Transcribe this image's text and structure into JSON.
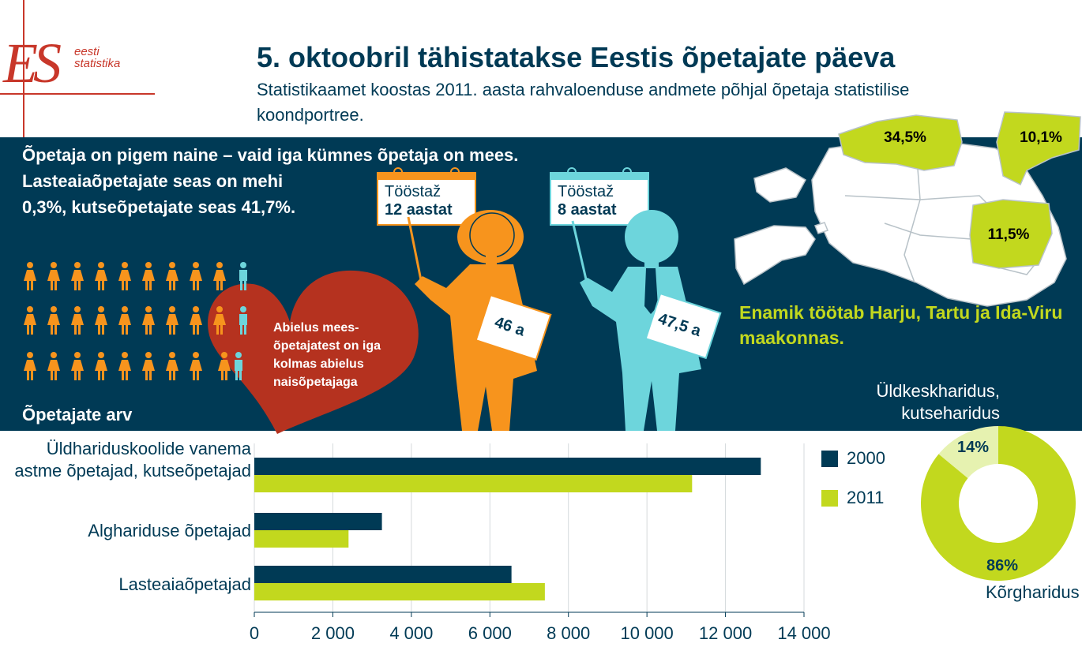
{
  "header": {
    "title": "5. oktoobril tähistatakse Eestis õpetajate päeva",
    "subtitle": "Statistikaamet koostas 2011. aasta rahvaloenduse andmete põhjal õpetaja statistilise koondportree."
  },
  "logo": {
    "mark": "ES",
    "line1": "eesti",
    "line2": "statistika",
    "color": "#c8372a"
  },
  "gender": {
    "line1": "Õpetaja on pigem naine – vaid iga kümnes õpetaja on mees.",
    "rest": "Lasteaiaõpetajate seas on mehi 0,3%, kutseõpetajate seas 41,7%."
  },
  "heart": {
    "text": "Abielus mees-õpetajatest on iga kolmas abielus naisõpetajaga"
  },
  "calendars": [
    {
      "label": "Tööstaž",
      "value": "12 aastat",
      "accent": "#f7941d"
    },
    {
      "label": "Tööstaž",
      "value": "8 aastat",
      "accent": "#6dd5dc"
    }
  ],
  "figures": {
    "woman_age": "46 a",
    "man_age": "47,5 a"
  },
  "map": {
    "labels": [
      "34,5%",
      "10,1%",
      "11,5%"
    ],
    "caption": "Enamik töötab Harju, Tartu ja Ida-Viru maakonnas."
  },
  "colors": {
    "navy": "#003a55",
    "green": "#c2d81e",
    "orange": "#f7941d",
    "teal": "#6dd5dc",
    "red": "#c8372a"
  },
  "chart_data": [
    {
      "type": "bar",
      "orientation": "horizontal",
      "title": "Õpetajate arv",
      "categories": [
        "Üldhariduskoolide vanema astme õpetajad, kutseõpetajad",
        "Alghariduse õpetajad",
        "Lasteaiaõpetajad"
      ],
      "series": [
        {
          "name": "2000",
          "color": "#003a55",
          "values": [
            12900,
            3250,
            6550
          ]
        },
        {
          "name": "2011",
          "color": "#c2d81e",
          "values": [
            11150,
            2400,
            7400
          ]
        }
      ],
      "xlim": [
        0,
        14000
      ],
      "xticks": [
        "0",
        "2 000",
        "4 000",
        "6 000",
        "8 000",
        "10 000",
        "12 000",
        "14 000"
      ],
      "grid": true,
      "legend": "right"
    },
    {
      "type": "pie",
      "variant": "donut",
      "slices": [
        {
          "label": "Üldkeskharidus, kutseharidus",
          "value": 14,
          "display": "14%",
          "color": "#e6f2b0"
        },
        {
          "label": "Kõrgharidus",
          "value": 86,
          "display": "86%",
          "color": "#c2d81e"
        }
      ]
    }
  ]
}
